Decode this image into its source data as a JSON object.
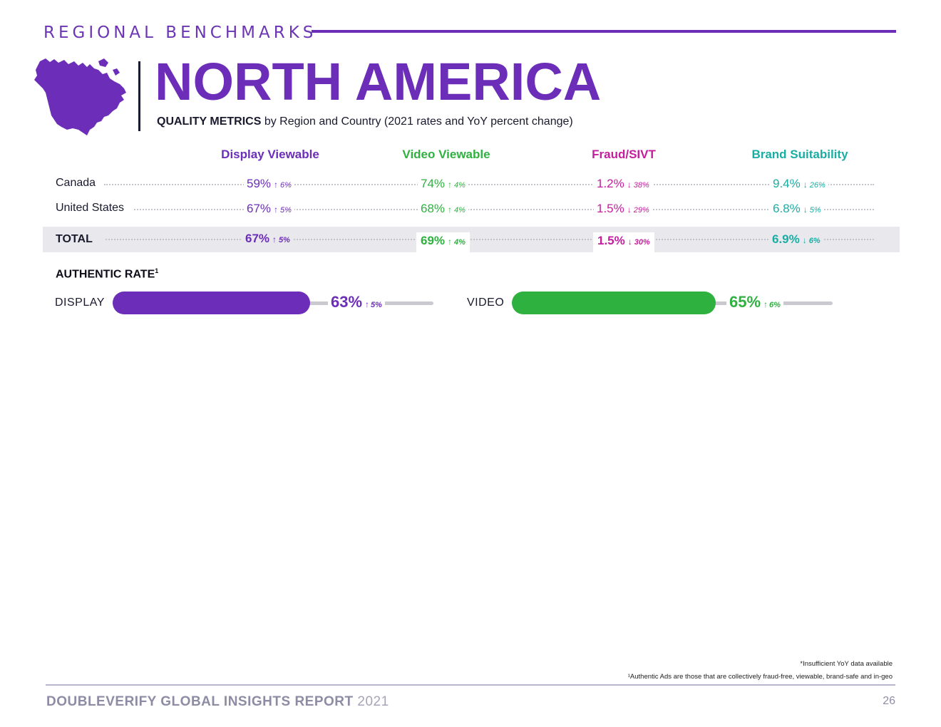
{
  "header": {
    "kicker": "REGIONAL BENCHMARKS",
    "region": "NORTH AMERICA",
    "subtitle_bold": "QUALITY METRICS",
    "subtitle_rest": " by Region and Country (2021 rates and YoY percent change)"
  },
  "colors": {
    "purple": "#6c2db8",
    "green": "#2fb140",
    "magenta": "#c31e9c",
    "teal": "#19ada4"
  },
  "columns": [
    {
      "label": "Display Viewable"
    },
    {
      "label": "Video Viewable"
    },
    {
      "label": "Fraud/SIVT"
    },
    {
      "label": "Brand Suitability"
    }
  ],
  "rows": [
    {
      "country": "Canada",
      "cells": [
        {
          "value": "59%",
          "arrow": "↑",
          "change": "6%"
        },
        {
          "value": "74%",
          "arrow": "↑",
          "change": "4%"
        },
        {
          "value": "1.2%",
          "arrow": "↓",
          "change": "38%"
        },
        {
          "value": "9.4%",
          "arrow": "↓",
          "change": "26%"
        }
      ]
    },
    {
      "country": "United States",
      "cells": [
        {
          "value": "67%",
          "arrow": "↑",
          "change": "5%"
        },
        {
          "value": "68%",
          "arrow": "↑",
          "change": "4%"
        },
        {
          "value": "1.5%",
          "arrow": "↓",
          "change": "29%"
        },
        {
          "value": "6.8%",
          "arrow": "↓",
          "change": "5%"
        }
      ]
    }
  ],
  "total": {
    "label": "TOTAL",
    "cells": [
      {
        "value": "67%",
        "arrow": "↑",
        "change": "5%"
      },
      {
        "value": "69%",
        "arrow": "↑",
        "change": "4%"
      },
      {
        "value": "1.5%",
        "arrow": "↓",
        "change": "30%"
      },
      {
        "value": "6.9%",
        "arrow": "↓",
        "change": "6%"
      }
    ]
  },
  "authentic": {
    "title": "AUTHENTIC RATE",
    "footnote_marker": "1",
    "display": {
      "label": "DISPLAY",
      "value": "63%",
      "arrow": "↑",
      "change": "5%",
      "fraction": 0.63
    },
    "video": {
      "label": "VIDEO",
      "value": "65%",
      "arrow": "↑",
      "change": "6%",
      "fraction": 0.65
    }
  },
  "footnotes": {
    "insufficient": "*Insufficient YoY data available",
    "authentic": "¹Authentic Ads are those that are collectively fraud-free, viewable, brand-safe and in-geo"
  },
  "footer": {
    "title": "DOUBLEVERIFY GLOBAL INSIGHTS REPORT",
    "year": "2021",
    "page": "26"
  }
}
